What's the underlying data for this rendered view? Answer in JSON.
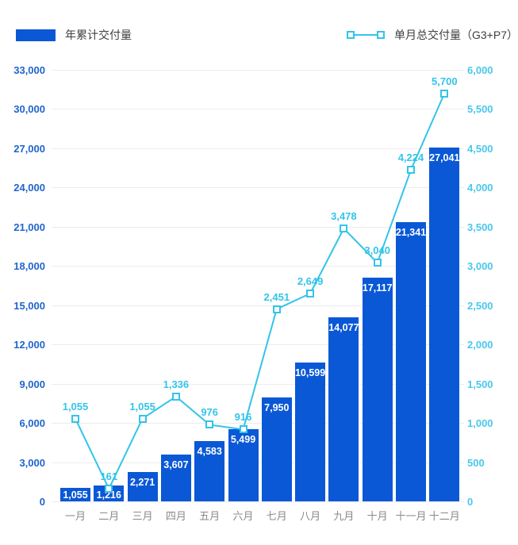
{
  "legend": {
    "bar": {
      "label": "年累计交付量"
    },
    "line": {
      "label": "单月总交付量（G3+P7）"
    }
  },
  "colors": {
    "bar": "#0a58d6",
    "line": "#33c4e9",
    "marker_fill": "#ffffff",
    "point_label_text": "#33c4e9",
    "bar_value_text": "#ffffff",
    "left_axis_text": "#2065cc",
    "right_axis_text": "#49c8ec",
    "month_text": "#8a8a8a",
    "gridline": "#ececec",
    "legend_text": "#3f3f3f",
    "background": "#ffffff"
  },
  "chart_data": {
    "type": "combo",
    "title": "",
    "categories": [
      "一月",
      "二月",
      "三月",
      "四月",
      "五月",
      "六月",
      "七月",
      "八月",
      "九月",
      "十月",
      "十一月",
      "十二月"
    ],
    "series": [
      {
        "name": "年累计交付量",
        "type": "bar",
        "axis": "left",
        "values": [
          1055,
          1216,
          2271,
          3607,
          4583,
          5499,
          7950,
          10599,
          14077,
          17117,
          21341,
          27041
        ]
      },
      {
        "name": "单月总交付量（G3+P7）",
        "type": "line",
        "axis": "right",
        "values": [
          1055,
          161,
          1055,
          1336,
          976,
          916,
          2451,
          2649,
          3478,
          3040,
          4224,
          5700
        ]
      }
    ],
    "left_axis": {
      "min": 0,
      "max": 33000,
      "tick_labels": [
        "33,000",
        "30,000",
        "27,000",
        "24,000",
        "21,000",
        "18,000",
        "15,000",
        "12,000",
        "9,000",
        "6,000",
        "3,000",
        "0"
      ]
    },
    "right_axis": {
      "min": 0,
      "max": 6000,
      "tick_labels": [
        "6,000",
        "5,500",
        "4,500",
        "4,000",
        "3,500",
        "3,000",
        "2,500",
        "2,000",
        "1,500",
        "1,000",
        "500",
        "0"
      ]
    },
    "grid": true,
    "data_labels": true,
    "legend_position": "top"
  }
}
